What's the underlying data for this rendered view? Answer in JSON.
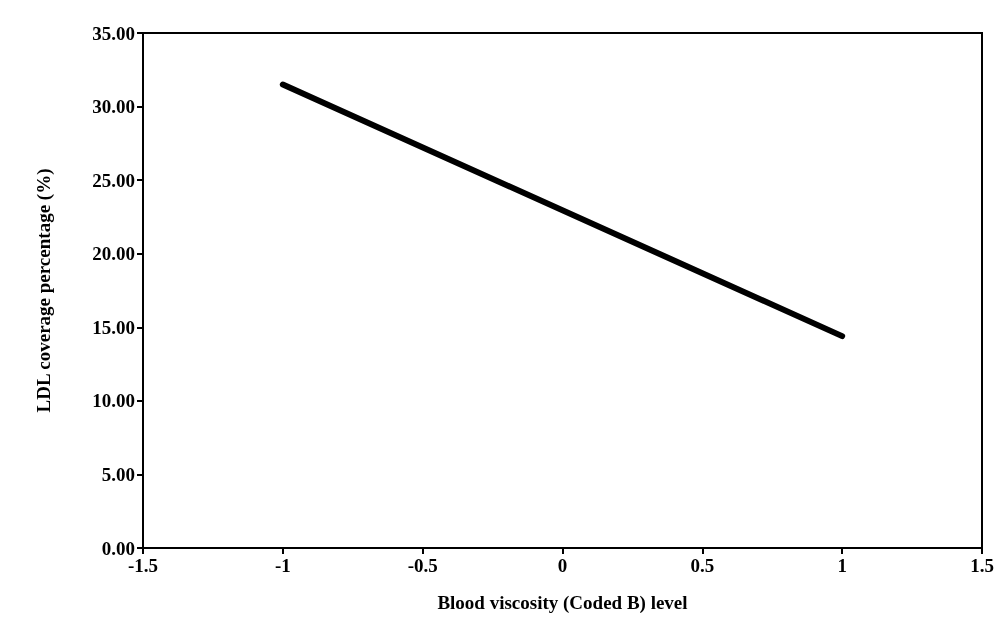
{
  "chart_data": {
    "type": "line",
    "xlabel": "Blood viscosity (Coded B) level",
    "ylabel": "LDL coverage percentage (%)",
    "x": [
      -1,
      1
    ],
    "series": [
      {
        "color": "#000000",
        "values": [
          31.5,
          14.4
        ]
      }
    ],
    "xlim": [
      -1.5,
      1.5
    ],
    "xticks": [
      -1.5,
      -1,
      -0.5,
      0,
      0.5,
      1,
      1.5
    ],
    "ylim": [
      0,
      35
    ],
    "yticks": [
      {
        "value": 0,
        "label": "0.00"
      },
      {
        "value": 5,
        "label": "5.00"
      },
      {
        "value": 10,
        "label": "10.00"
      },
      {
        "value": 15,
        "label": "15.00"
      },
      {
        "value": 20,
        "label": "20.00"
      },
      {
        "value": 25,
        "label": "25.00"
      },
      {
        "value": 30,
        "label": "30.00"
      },
      {
        "value": 35,
        "label": "35.00"
      }
    ],
    "grid": false,
    "marker": "none",
    "line_style": "solid"
  }
}
